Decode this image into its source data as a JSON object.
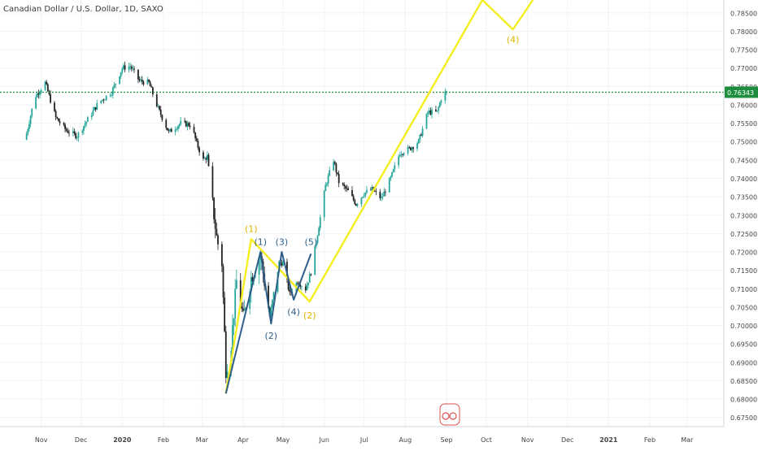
{
  "header": {
    "symbol_title": "Canadian Dollar / U.S. Dollar, 1D, SAXO"
  },
  "chart_data": {
    "type": "candlestick",
    "title": "Canadian Dollar / U.S. Dollar, 1D, SAXO",
    "y_axis_side": "right",
    "ylim": [
      0.6725,
      0.7885
    ],
    "y_ticks": [
      "0.78500",
      "0.78000",
      "0.77500",
      "0.77000",
      "0.76500",
      "0.76000",
      "0.75500",
      "0.75000",
      "0.74500",
      "0.74000",
      "0.73500",
      "0.73000",
      "0.72500",
      "0.72000",
      "0.71500",
      "0.71000",
      "0.70500",
      "0.70000",
      "0.69500",
      "0.69000",
      "0.68500",
      "0.68000",
      "0.67500"
    ],
    "x_ticks": [
      {
        "label": "Nov",
        "date": "2019-11-01",
        "bold": false
      },
      {
        "label": "Dec",
        "date": "2019-12-01",
        "bold": false
      },
      {
        "label": "2020",
        "date": "2020-01-01",
        "bold": true
      },
      {
        "label": "Feb",
        "date": "2020-02-01",
        "bold": false
      },
      {
        "label": "Mar",
        "date": "2020-03-01",
        "bold": false
      },
      {
        "label": "Apr",
        "date": "2020-04-01",
        "bold": false
      },
      {
        "label": "May",
        "date": "2020-05-01",
        "bold": false
      },
      {
        "label": "Jun",
        "date": "2020-06-01",
        "bold": false
      },
      {
        "label": "Jul",
        "date": "2020-07-01",
        "bold": false
      },
      {
        "label": "Aug",
        "date": "2020-08-01",
        "bold": false
      },
      {
        "label": "Sep",
        "date": "2020-09-01",
        "bold": false
      },
      {
        "label": "Oct",
        "date": "2020-10-01",
        "bold": false
      },
      {
        "label": "Nov",
        "date": "2020-11-01",
        "bold": false
      },
      {
        "label": "Dec",
        "date": "2020-12-01",
        "bold": false
      },
      {
        "label": "2021",
        "date": "2021-01-01",
        "bold": true
      },
      {
        "label": "Feb",
        "date": "2021-02-01",
        "bold": false
      },
      {
        "label": "Mar",
        "date": "2021-03-01",
        "bold": false
      }
    ],
    "grid": true,
    "current_price": {
      "label": "0.76343",
      "value": 0.76343,
      "color": "#1e8e3e"
    },
    "colors": {
      "up": "#26a69a",
      "down": "#222222",
      "yellow_wave": "#f5ee1f",
      "blue_wave": "#2e5f8a",
      "yellow_label": "#e1b400",
      "blue_label": "#2e5f8a"
    },
    "price_anchors": [
      {
        "date": "2019-10-20",
        "close": 0.7505
      },
      {
        "date": "2019-10-27",
        "close": 0.762
      },
      {
        "date": "2019-11-04",
        "close": 0.766
      },
      {
        "date": "2019-11-12",
        "close": 0.7565
      },
      {
        "date": "2019-11-20",
        "close": 0.753
      },
      {
        "date": "2019-11-28",
        "close": 0.7515
      },
      {
        "date": "2019-12-06",
        "close": 0.756
      },
      {
        "date": "2019-12-14",
        "close": 0.7605
      },
      {
        "date": "2019-12-24",
        "close": 0.7635
      },
      {
        "date": "2020-01-01",
        "close": 0.77
      },
      {
        "date": "2020-01-07",
        "close": 0.7705
      },
      {
        "date": "2020-01-14",
        "close": 0.7665
      },
      {
        "date": "2020-01-21",
        "close": 0.766
      },
      {
        "date": "2020-01-28",
        "close": 0.759
      },
      {
        "date": "2020-02-05",
        "close": 0.7525
      },
      {
        "date": "2020-02-14",
        "close": 0.755
      },
      {
        "date": "2020-02-22",
        "close": 0.7545
      },
      {
        "date": "2020-02-26",
        "close": 0.7495
      },
      {
        "date": "2020-03-02",
        "close": 0.745
      },
      {
        "date": "2020-03-05",
        "close": 0.746
      },
      {
        "date": "2020-03-09",
        "close": 0.733
      },
      {
        "date": "2020-03-12",
        "close": 0.724
      },
      {
        "date": "2020-03-16",
        "close": 0.717
      },
      {
        "date": "2020-03-19",
        "close": 0.688
      },
      {
        "date": "2020-03-23",
        "close": 0.695
      },
      {
        "date": "2020-03-27",
        "close": 0.712
      },
      {
        "date": "2020-04-01",
        "close": 0.702
      },
      {
        "date": "2020-04-07",
        "close": 0.713
      },
      {
        "date": "2020-04-14",
        "close": 0.719
      },
      {
        "date": "2020-04-21",
        "close": 0.7025
      },
      {
        "date": "2020-04-28",
        "close": 0.717
      },
      {
        "date": "2020-05-01",
        "close": 0.717
      },
      {
        "date": "2020-05-06",
        "close": 0.7085
      },
      {
        "date": "2020-05-12",
        "close": 0.712
      },
      {
        "date": "2020-05-18",
        "close": 0.71
      },
      {
        "date": "2020-05-22",
        "close": 0.7145
      },
      {
        "date": "2020-05-27",
        "close": 0.725
      },
      {
        "date": "2020-06-02",
        "close": 0.738
      },
      {
        "date": "2020-06-08",
        "close": 0.745
      },
      {
        "date": "2020-06-12",
        "close": 0.739
      },
      {
        "date": "2020-06-19",
        "close": 0.7365
      },
      {
        "date": "2020-06-25",
        "close": 0.733
      },
      {
        "date": "2020-07-01",
        "close": 0.736
      },
      {
        "date": "2020-07-07",
        "close": 0.737
      },
      {
        "date": "2020-07-14",
        "close": 0.7345
      },
      {
        "date": "2020-07-21",
        "close": 0.74
      },
      {
        "date": "2020-07-28",
        "close": 0.747
      },
      {
        "date": "2020-08-04",
        "close": 0.748
      },
      {
        "date": "2020-08-11",
        "close": 0.75
      },
      {
        "date": "2020-08-18",
        "close": 0.758
      },
      {
        "date": "2020-08-25",
        "close": 0.758
      },
      {
        "date": "2020-08-29",
        "close": 0.763
      },
      {
        "date": "2020-09-01",
        "close": 0.7634
      }
    ],
    "yellow_wave": [
      {
        "date": "2020-03-19",
        "price": 0.6815
      },
      {
        "date": "2020-04-07",
        "price": 0.7235
      },
      {
        "date": "2020-05-21",
        "price": 0.7065
      },
      {
        "date": "2020-09-28",
        "price": 0.7885
      },
      {
        "date": "2020-10-21",
        "price": 0.7805
      },
      {
        "date": "2020-11-05",
        "price": 0.7885
      }
    ],
    "blue_wave": [
      {
        "date": "2020-03-19",
        "price": 0.6815
      },
      {
        "date": "2020-03-24",
        "price": 0.689
      },
      {
        "date": "2020-04-14",
        "price": 0.72
      },
      {
        "date": "2020-04-22",
        "price": 0.7005
      },
      {
        "date": "2020-04-30",
        "price": 0.72
      },
      {
        "date": "2020-05-09",
        "price": 0.707
      },
      {
        "date": "2020-05-22",
        "price": 0.7195
      }
    ],
    "wave_labels": [
      {
        "text": "(1)",
        "date": "2020-04-07",
        "price": 0.7245,
        "color": "yellow",
        "pos": "above"
      },
      {
        "text": "(2)",
        "date": "2020-05-21",
        "price": 0.7045,
        "color": "yellow",
        "pos": "below"
      },
      {
        "text": "(4)",
        "date": "2020-10-21",
        "price": 0.7795,
        "color": "yellow",
        "pos": "below"
      },
      {
        "text": "(1)",
        "date": "2020-04-14",
        "price": 0.721,
        "color": "blue",
        "pos": "above"
      },
      {
        "text": "(2)",
        "date": "2020-04-22",
        "price": 0.699,
        "color": "blue",
        "pos": "below"
      },
      {
        "text": "(3)",
        "date": "2020-04-30",
        "price": 0.721,
        "color": "blue",
        "pos": "above"
      },
      {
        "text": "(4)",
        "date": "2020-05-09",
        "price": 0.7055,
        "color": "blue",
        "pos": "below"
      },
      {
        "text": "(5)",
        "date": "2020-05-22",
        "price": 0.721,
        "color": "blue",
        "pos": "above"
      }
    ]
  }
}
